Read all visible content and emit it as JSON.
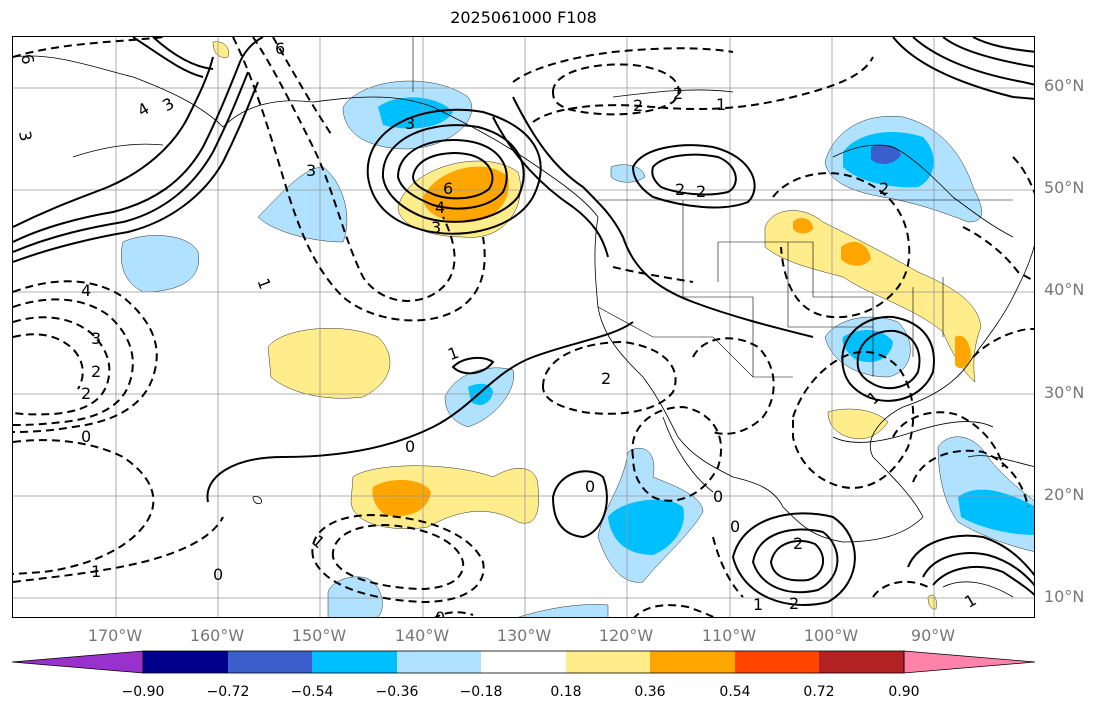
{
  "title": "2025061000 F108",
  "lat_labels": [
    {
      "text": "60°N"
    },
    {
      "text": "50°N"
    },
    {
      "text": "40°N"
    },
    {
      "text": "30°N"
    },
    {
      "text": "20°N"
    },
    {
      "text": "10°N"
    }
  ],
  "lon_labels": [
    {
      "text": "170°W"
    },
    {
      "text": "160°W"
    },
    {
      "text": "150°W"
    },
    {
      "text": "140°W"
    },
    {
      "text": "130°W"
    },
    {
      "text": "120°W"
    },
    {
      "text": "110°W"
    },
    {
      "text": "100°W"
    },
    {
      "text": "90°W"
    }
  ],
  "colorbar": {
    "colors": [
      "#9932cc",
      "#00008b",
      "#3a5fcd",
      "#00bfff",
      "#b0e2ff",
      "#ffffff",
      "#ffec8b",
      "#ffa500",
      "#ff4500",
      "#b22222",
      "#ff82ab"
    ],
    "under_color": "#9932cc",
    "over_color": "#ff82ab",
    "ticks": [
      "−0.90",
      "−0.72",
      "−0.54",
      "−0.36",
      "−0.18",
      "0.18",
      "0.36",
      "0.54",
      "0.72",
      "0.90"
    ]
  },
  "contour_labels": [
    {
      "text": "6"
    },
    {
      "text": "4"
    },
    {
      "text": "3"
    },
    {
      "text": "3"
    },
    {
      "text": "6"
    },
    {
      "text": "3"
    },
    {
      "text": "3"
    },
    {
      "text": "6"
    },
    {
      "text": "4"
    },
    {
      "text": "3"
    },
    {
      "text": "2"
    },
    {
      "text": "2"
    },
    {
      "text": "1"
    },
    {
      "text": "2"
    },
    {
      "text": "2"
    },
    {
      "text": "2"
    },
    {
      "text": "4"
    },
    {
      "text": "3"
    },
    {
      "text": "2"
    },
    {
      "text": "2"
    },
    {
      "text": "0"
    },
    {
      "text": "1"
    },
    {
      "text": "1"
    },
    {
      "text": "0"
    },
    {
      "text": "2"
    },
    {
      "text": "0"
    },
    {
      "text": "0"
    },
    {
      "text": "0"
    },
    {
      "text": "2"
    },
    {
      "text": "1"
    },
    {
      "text": "0"
    },
    {
      "text": "1"
    },
    {
      "text": "0"
    },
    {
      "text": "1"
    },
    {
      "text": "1"
    },
    {
      "text": "1"
    },
    {
      "text": "2"
    }
  ]
}
